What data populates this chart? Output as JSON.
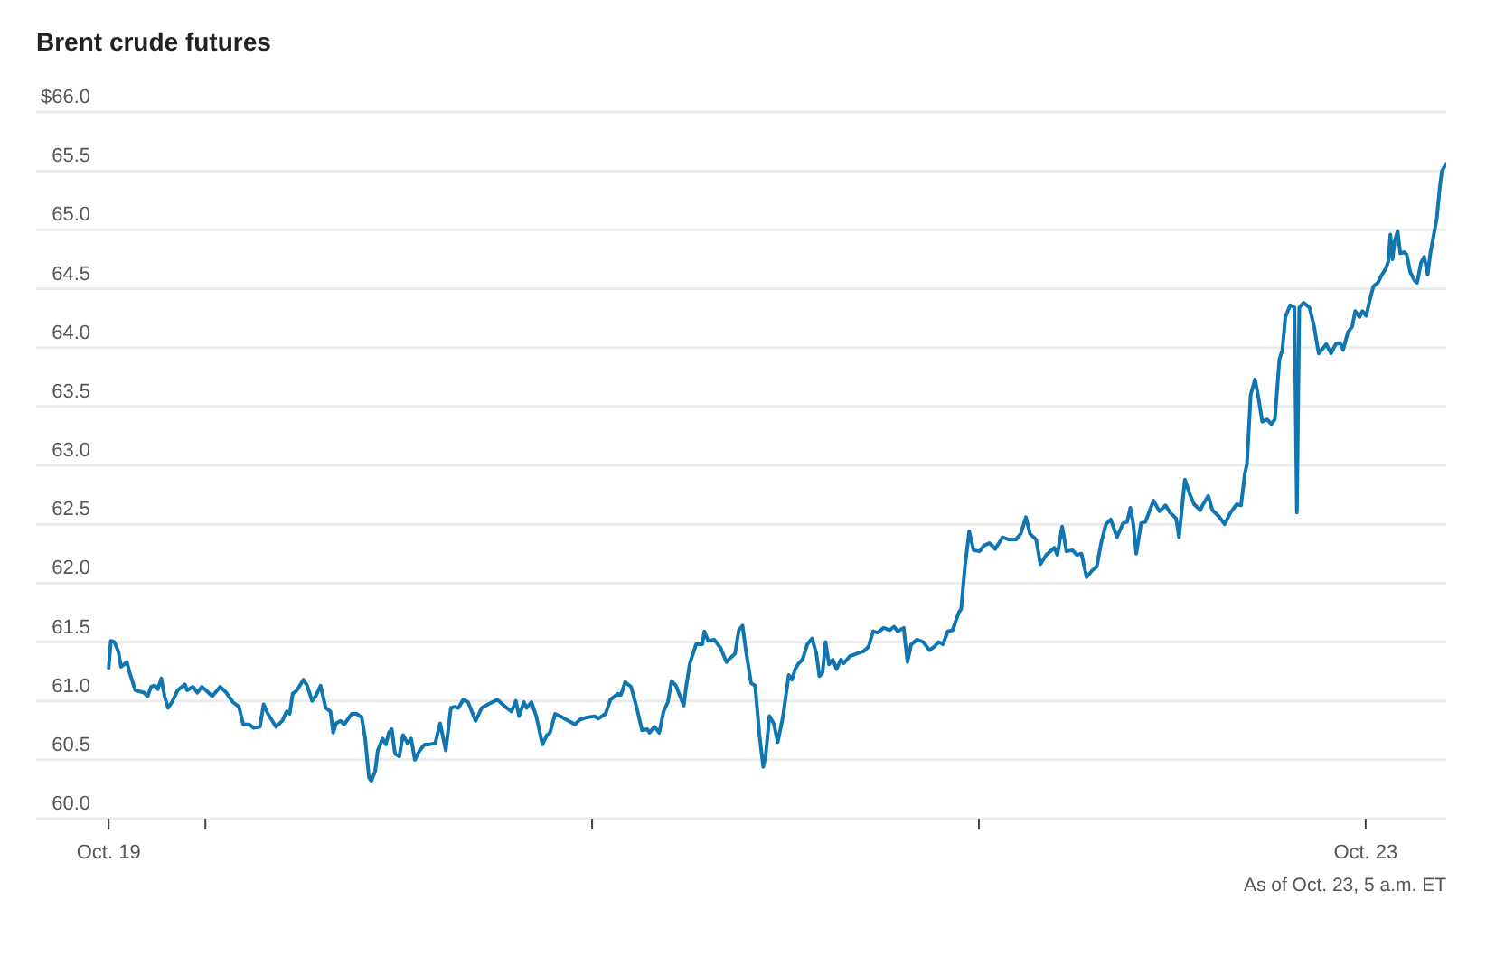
{
  "chart_data": {
    "type": "line",
    "title": "Brent crude futures",
    "color": "#0f76b1",
    "x": [
      "--10-19T18:00",
      "--10-19T18:08",
      "--10-19T18:21",
      "--10-19T18:36",
      "--10-19T18:46",
      "--10-19T19:08",
      "--10-19T19:18",
      "--10-19T19:39",
      "--10-19T20:11",
      "--10-19T20:25",
      "--10-19T20:38",
      "--10-19T20:52",
      "--10-19T21:03",
      "--10-19T21:16",
      "--10-19T21:28",
      "--10-19T21:41",
      "--10-19T21:56",
      "--10-19T22:17",
      "--10-19T22:44",
      "--10-19T22:52",
      "--10-19T23:14",
      "--10-19T23:30",
      "--10-19T23:47",
      "--10-20T00:02",
      "--10-20T00:26",
      "--10-20T00:55",
      "--10-20T01:18",
      "--10-20T01:42",
      "--10-20T02:05",
      "--10-20T02:21",
      "--10-20T02:44",
      "--10-20T03:00",
      "--10-20T03:23",
      "--10-20T03:37",
      "--10-20T03:53",
      "--10-20T04:23",
      "--10-20T04:46",
      "--10-20T05:03",
      "--10-20T05:14",
      "--10-20T05:25",
      "--10-20T05:41",
      "--10-20T06:05",
      "--10-20T06:19",
      "--10-20T06:37",
      "--10-20T06:51",
      "--10-20T07:09",
      "--10-20T07:28",
      "--10-20T07:46",
      "--10-20T07:56",
      "--10-20T08:07",
      "--10-20T08:23",
      "--10-20T08:37",
      "--10-20T09:05",
      "--10-20T09:23",
      "--10-20T09:42",
      "--10-20T09:55",
      "--10-20T10:09",
      "--10-20T10:18",
      "--10-20T10:32",
      "--10-20T10:42",
      "--10-20T11:00",
      "--10-20T11:12",
      "--10-20T11:23",
      "--10-20T11:34",
      "--10-20T11:46",
      "--10-20T12:02",
      "--10-20T12:16",
      "--10-20T12:33",
      "--10-20T12:46",
      "--10-20T13:00",
      "--10-20T13:18",
      "--10-20T13:37",
      "--10-20T13:53",
      "--10-20T14:16",
      "--10-20T14:34",
      "--10-20T14:55",
      "--10-20T15:14",
      "--10-20T15:28",
      "--10-20T15:42",
      "--10-20T16:00",
      "--10-20T16:18",
      "--10-20T16:46",
      "--10-20T17:09",
      "--10-20T17:32",
      "--10-20T18:07",
      "--10-20T18:42",
      "--10-20T19:00",
      "--10-20T19:16",
      "--10-20T19:28",
      "--10-20T19:46",
      "--10-20T19:56",
      "--10-20T20:14",
      "--10-20T20:32",
      "--10-20T20:55",
      "--10-20T21:12",
      "--10-20T21:23",
      "--10-20T21:42",
      "--10-20T22:09",
      "--10-20T22:56",
      "--10-20T23:14",
      "--10-20T23:41",
      "--10-21T00:09",
      "--10-21T00:23",
      "--10-21T00:50",
      "--10-21T01:08",
      "--10-21T01:36",
      "--10-21T01:47",
      "--10-21T02:03",
      "--10-21T02:25",
      "--10-21T02:44",
      "--10-21T03:06",
      "--10-21T03:25",
      "--10-21T03:34",
      "--10-21T03:52",
      "--10-21T04:10",
      "--10-21T04:26",
      "--10-21T04:42",
      "--10-21T04:56",
      "--10-21T05:12",
      "--10-21T05:41",
      "--10-21T05:50",
      "--10-21T06:04",
      "--10-21T06:27",
      "--10-21T06:50",
      "--10-21T06:58",
      "--10-21T07:12",
      "--10-21T07:35",
      "--10-21T07:58",
      "--10-21T08:20",
      "--10-21T08:37",
      "--10-21T08:52",
      "--10-21T09:06",
      "--10-21T09:20",
      "--10-21T09:33",
      "--10-21T09:52",
      "--10-21T10:07",
      "--10-21T10:23",
      "--10-21T10:37",
      "--10-21T10:46",
      "--10-21T11:00",
      "--10-21T11:16",
      "--10-21T11:31",
      "--10-21T11:50",
      "--10-21T12:12",
      "--10-21T12:24",
      "--10-21T12:36",
      "--10-21T12:49",
      "--10-21T13:03",
      "--10-21T13:21",
      "--10-21T13:39",
      "--10-21T13:55",
      "--10-21T14:06",
      "--10-21T14:18",
      "--10-21T14:29",
      "--10-21T14:42",
      "--10-21T14:56",
      "--10-21T15:10",
      "--10-21T15:26",
      "--10-21T15:37",
      "--10-21T16:00",
      "--10-21T16:23",
      "--10-21T16:50",
      "--10-21T17:09",
      "--10-21T17:26",
      "--10-21T17:43",
      "--10-21T18:05",
      "--10-21T18:28",
      "--10-21T18:44",
      "--10-21T18:58",
      "--10-21T19:20",
      "--10-21T19:34",
      "--10-21T19:48",
      "--10-21T20:10",
      "--10-21T20:33",
      "--10-21T20:56",
      "--10-21T21:14",
      "--10-21T21:30",
      "--10-21T21:46",
      "--10-21T22:04",
      "--10-21T22:22",
      "--10-21T22:45",
      "--10-21T22:54",
      "--10-21T23:08",
      "--10-21T23:24",
      "--10-21T23:40",
      "--10-22T00:02",
      "--10-22T00:20",
      "--10-22T00:39",
      "--10-22T01:01",
      "--10-22T01:28",
      "--10-22T01:51",
      "--10-22T02:18",
      "--10-22T02:36",
      "--10-22T02:55",
      "--10-22T03:10",
      "--10-22T03:33",
      "--10-22T03:49",
      "--10-22T04:11",
      "--10-22T04:41",
      "--10-22T04:52",
      "--10-22T05:10",
      "--10-22T05:26",
      "--10-22T05:48",
      "--10-22T06:05",
      "--10-22T06:22",
      "--10-22T06:41",
      "--10-22T07:03",
      "--10-22T07:19",
      "--10-22T07:35",
      "--10-22T07:53",
      "--10-22T08:11",
      "--10-22T08:34",
      "--10-22T08:57",
      "--10-22T09:12",
      "--10-22T09:24",
      "--10-22T09:35",
      "--10-22T09:46",
      "--10-22T10:04",
      "--10-22T10:20",
      "--10-22T10:50",
      "--10-22T11:12",
      "--10-22T11:35",
      "--10-22T11:51",
      "--10-22T12:14",
      "--10-22T12:25",
      "--10-22T12:47",
      "--10-22T13:06",
      "--10-22T13:21",
      "--10-22T13:44",
      "--10-22T13:55",
      "--10-22T14:14",
      "--10-22T14:29",
      "--10-22T14:52",
      "--10-22T15:15",
      "--10-22T15:37",
      "--10-22T16:00",
      "--10-22T16:16",
      "--10-22T16:30",
      "--10-22T16:38",
      "--10-22T16:52",
      "--10-22T17:08",
      "--10-22T17:19",
      "--10-22T17:35",
      "--10-22T17:53",
      "--10-22T18:09",
      "--10-22T18:22",
      "--10-22T18:39",
      "--10-22T18:50",
      "--10-22T19:01",
      "--10-22T19:19",
      "--10-22T19:35",
      "--10-22T19:44",
      "--10-22T19:53",
      "--10-22T20:09",
      "--10-22T20:31",
      "--10-22T20:48",
      "--10-22T21:05",
      "--10-22T21:24",
      "--10-22T21:33",
      "--10-22T21:51",
      "--10-22T22:09",
      "--10-22T22:25",
      "--10-22T22:36",
      "--10-22T22:54",
      "--10-22T23:10",
      "--10-22T23:21",
      "--10-22T23:37",
      "--10-22T23:48",
      "--10-23T00:02",
      "--10-23T00:16",
      "--10-23T00:29",
      "--10-23T00:45",
      "--10-23T01:01",
      "--10-23T01:15",
      "--10-23T01:24",
      "--10-23T01:32",
      "--10-23T01:40",
      "--10-23T01:48",
      "--10-23T01:59",
      "--10-23T02:09",
      "--10-23T02:23",
      "--10-23T02:33",
      "--10-23T02:46",
      "--10-23T03:02",
      "--10-23T03:12",
      "--10-23T03:26",
      "--10-23T03:38",
      "--10-23T03:51",
      "--10-23T04:01",
      "--10-23T04:17",
      "--10-23T04:25",
      "--10-23T04:36",
      "--10-23T04:44",
      "--10-23T05:00"
    ],
    "values": [
      61.28,
      61.51,
      61.5,
      61.42,
      61.29,
      61.33,
      61.24,
      61.09,
      61.07,
      61.04,
      61.12,
      61.13,
      61.1,
      61.19,
      61.04,
      60.94,
      60.99,
      61.09,
      61.14,
      61.09,
      61.12,
      61.07,
      61.12,
      61.09,
      61.04,
      61.12,
      61.07,
      60.99,
      60.95,
      60.8,
      60.8,
      60.77,
      60.78,
      60.97,
      60.89,
      60.78,
      60.83,
      60.91,
      60.89,
      61.06,
      61.09,
      61.18,
      61.13,
      61.0,
      61.04,
      61.13,
      60.94,
      60.91,
      60.73,
      60.81,
      60.83,
      60.8,
      60.89,
      60.89,
      60.86,
      60.68,
      60.35,
      60.32,
      60.4,
      60.58,
      60.68,
      60.63,
      60.73,
      60.76,
      60.55,
      60.53,
      60.71,
      60.64,
      60.68,
      60.5,
      60.58,
      60.63,
      60.63,
      60.64,
      60.81,
      60.58,
      60.94,
      60.95,
      60.94,
      61.01,
      60.99,
      60.83,
      60.94,
      60.97,
      61.01,
      60.94,
      60.91,
      61.0,
      60.87,
      60.99,
      60.94,
      60.99,
      60.87,
      60.63,
      60.71,
      60.73,
      60.89,
      60.86,
      60.8,
      60.84,
      60.86,
      60.87,
      60.85,
      60.89,
      61.01,
      61.06,
      61.05,
      61.16,
      61.12,
      60.96,
      60.75,
      60.76,
      60.73,
      60.78,
      60.73,
      60.91,
      60.99,
      61.17,
      61.13,
      60.96,
      61.12,
      61.32,
      61.48,
      61.48,
      61.59,
      61.51,
      61.52,
      61.45,
      61.33,
      61.37,
      61.4,
      61.6,
      61.64,
      61.42,
      61.15,
      61.13,
      60.71,
      60.44,
      60.53,
      60.87,
      60.81,
      60.65,
      60.86,
      61.22,
      61.18,
      61.27,
      61.32,
      61.35,
      61.48,
      61.53,
      61.4,
      61.21,
      61.24,
      61.5,
      61.31,
      61.35,
      61.27,
      61.35,
      61.32,
      61.38,
      61.4,
      61.42,
      61.46,
      61.59,
      61.58,
      61.62,
      61.6,
      61.63,
      61.59,
      61.62,
      61.33,
      61.48,
      61.52,
      61.5,
      61.43,
      61.46,
      61.5,
      61.48,
      61.59,
      61.6,
      61.75,
      61.78,
      62.14,
      62.44,
      62.28,
      62.27,
      62.32,
      62.34,
      62.29,
      62.39,
      62.37,
      62.37,
      62.42,
      62.56,
      62.42,
      62.37,
      62.16,
      62.24,
      62.3,
      62.24,
      62.48,
      62.27,
      62.28,
      62.24,
      62.25,
      62.05,
      62.11,
      62.14,
      62.34,
      62.5,
      62.54,
      62.39,
      62.51,
      62.52,
      62.64,
      62.5,
      62.25,
      62.51,
      62.52,
      62.7,
      62.61,
      62.66,
      62.6,
      62.55,
      62.39,
      62.88,
      62.75,
      62.67,
      62.62,
      62.67,
      62.74,
      62.62,
      62.57,
      62.5,
      62.6,
      62.67,
      62.66,
      62.93,
      63.01,
      63.6,
      63.73,
      63.6,
      63.37,
      63.39,
      63.35,
      63.39,
      63.9,
      63.98,
      64.26,
      64.36,
      64.34,
      62.6,
      64.34,
      64.38,
      64.34,
      64.18,
      63.95,
      64.0,
      64.03,
      63.95,
      64.03,
      64.04,
      63.98,
      64.13,
      64.18,
      64.31,
      64.26,
      64.31,
      64.27,
      64.41,
      64.52,
      64.55,
      64.62,
      64.67,
      64.73,
      64.96,
      64.75,
      64.9,
      64.99,
      64.8,
      64.81,
      64.79,
      64.64,
      64.57,
      64.55,
      64.72,
      64.77,
      64.62,
      64.8,
      65.0,
      65.1,
      65.36,
      65.5,
      65.56
    ],
    "xlim": [
      "--10-19T13:30",
      "--10-23T05:00"
    ],
    "xticks": [
      {
        "value": "--10-19T18:00",
        "label": "Oct. 19"
      },
      {
        "value": "--10-20",
        "label": null
      },
      {
        "value": "--10-21",
        "label": null
      },
      {
        "value": "--10-22",
        "label": null
      },
      {
        "value": "--10-23",
        "label": "Oct. 23"
      }
    ],
    "ylim": [
      60,
      66
    ],
    "yticks": [
      {
        "value": 60,
        "label": "60.0"
      },
      60.5,
      {
        "value": 61,
        "label": "61.0"
      },
      61.5,
      {
        "value": 62,
        "label": "62.0"
      },
      62.5,
      {
        "value": 63,
        "label": "63.0"
      },
      63.5,
      {
        "value": 64,
        "label": "64.0"
      },
      64.5,
      {
        "value": 65,
        "label": "65.0"
      },
      65.5,
      {
        "value": 66,
        "label": "$66.0"
      }
    ],
    "grid": "y",
    "annotations": [
      "As of Oct. 23, 5 a.m. ET"
    ]
  }
}
